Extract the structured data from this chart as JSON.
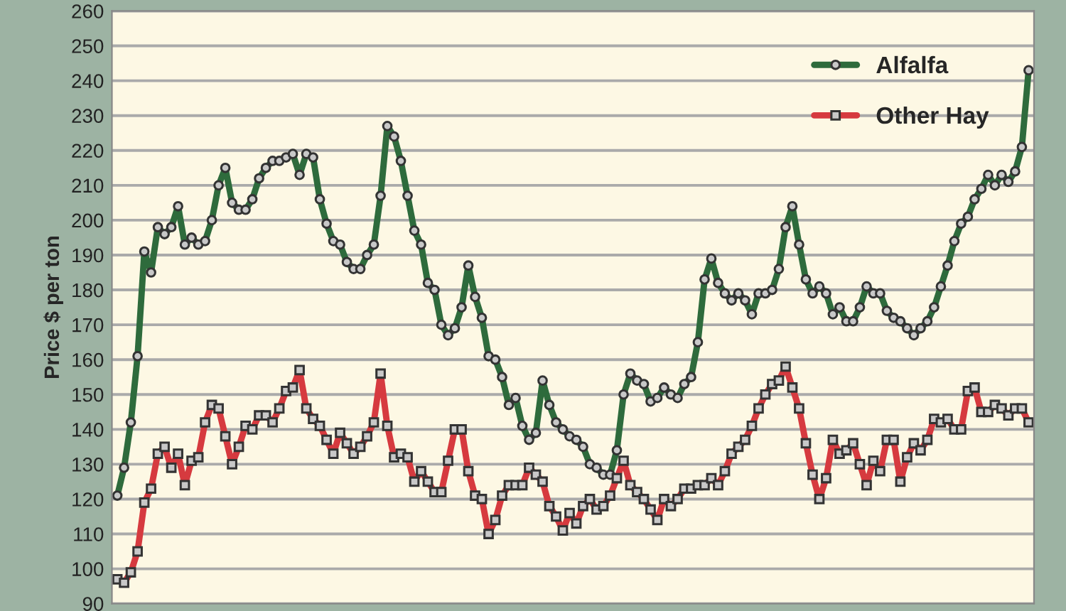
{
  "chart_data": {
    "type": "line",
    "ylabel": "Price $ per ton",
    "categories": [
      null,
      null,
      null,
      null,
      null,
      null,
      null,
      null,
      null,
      null,
      null,
      null,
      null,
      null,
      null,
      null,
      null,
      null,
      null,
      null,
      null,
      null,
      null,
      null,
      null,
      null,
      null,
      null,
      null,
      null,
      null,
      null,
      null,
      null,
      null,
      null,
      null,
      null,
      null,
      null,
      null,
      null,
      null,
      null,
      null,
      null,
      null,
      null,
      null,
      null,
      null,
      null,
      null,
      null,
      null,
      null,
      null,
      null,
      null,
      null,
      null,
      null,
      null,
      null,
      null,
      null,
      null,
      null,
      null,
      null,
      null,
      null,
      null,
      null,
      null,
      null,
      null,
      null,
      null,
      null,
      null,
      null,
      null,
      null,
      null,
      null,
      null,
      null,
      null,
      null,
      null,
      null,
      null,
      null,
      null,
      null,
      null,
      null,
      null,
      null,
      null,
      null,
      null,
      null,
      null,
      null,
      null,
      null,
      null,
      null,
      null,
      null,
      null,
      null,
      null,
      null,
      null,
      null,
      null,
      null,
      null,
      null,
      null,
      null,
      null,
      null,
      null,
      null,
      null,
      null,
      null,
      null,
      null,
      null,
      null,
      null
    ],
    "series": [
      {
        "name": "Alfalfa",
        "color": "#2e6b3c",
        "marker": "circle",
        "values": [
          121,
          129,
          142,
          161,
          191,
          185,
          198,
          196,
          198,
          204,
          193,
          195,
          193,
          194,
          200,
          210,
          215,
          205,
          203,
          203,
          206,
          212,
          215,
          217,
          217,
          218,
          219,
          213,
          219,
          218,
          206,
          199,
          194,
          193,
          188,
          186,
          186,
          190,
          193,
          207,
          227,
          224,
          217,
          207,
          197,
          193,
          182,
          180,
          170,
          167,
          169,
          175,
          187,
          178,
          172,
          161,
          160,
          155,
          147,
          149,
          141,
          137,
          139,
          154,
          147,
          142,
          140,
          138,
          137,
          135,
          130,
          129,
          127,
          127,
          134,
          150,
          156,
          154,
          153,
          148,
          149,
          152,
          150,
          149,
          153,
          155,
          165,
          183,
          189,
          182,
          179,
          177,
          179,
          177,
          173,
          179,
          179,
          180,
          186,
          198,
          204,
          193,
          183,
          179,
          181,
          179,
          173,
          175,
          171,
          171,
          175,
          181,
          179,
          179,
          174,
          172,
          171,
          169,
          167,
          169,
          171,
          175,
          181,
          187,
          194,
          199,
          201,
          206,
          209,
          213,
          210,
          213,
          211,
          214,
          221,
          243
        ]
      },
      {
        "name": "Other Hay",
        "color": "#d63a3f",
        "marker": "square",
        "values": [
          97,
          96,
          99,
          105,
          119,
          123,
          133,
          135,
          129,
          133,
          124,
          131,
          132,
          142,
          147,
          146,
          138,
          130,
          135,
          141,
          140,
          144,
          144,
          142,
          146,
          151,
          152,
          157,
          146,
          143,
          141,
          137,
          133,
          139,
          136,
          133,
          135,
          138,
          142,
          156,
          141,
          132,
          133,
          132,
          125,
          128,
          125,
          122,
          122,
          131,
          140,
          140,
          128,
          121,
          120,
          110,
          114,
          121,
          124,
          124,
          124,
          129,
          127,
          125,
          118,
          115,
          111,
          116,
          113,
          118,
          120,
          117,
          118,
          121,
          126,
          131,
          124,
          122,
          120,
          117,
          114,
          120,
          118,
          120,
          123,
          123,
          124,
          124,
          126,
          124,
          128,
          133,
          135,
          137,
          141,
          146,
          150,
          153,
          154,
          158,
          152,
          146,
          136,
          127,
          120,
          126,
          137,
          133,
          134,
          136,
          130,
          124,
          131,
          128,
          137,
          137,
          125,
          132,
          136,
          134,
          137,
          143,
          142,
          143,
          140,
          140,
          151,
          152,
          145,
          145,
          147,
          146,
          144,
          146,
          146,
          142
        ]
      }
    ],
    "ylim": [
      90,
      260
    ],
    "yticks": [
      90,
      100,
      110,
      120,
      130,
      140,
      150,
      160,
      170,
      180,
      190,
      200,
      210,
      220,
      230,
      240,
      250,
      260
    ],
    "grid": "y",
    "legend": "top right"
  }
}
